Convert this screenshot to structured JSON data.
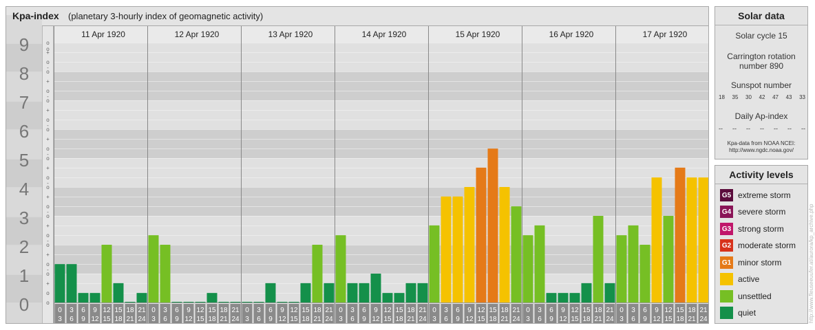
{
  "kp_panel": {
    "title": "Kpa-index",
    "subtitle": "(planetary 3-hourly index of geomagnetic activity)"
  },
  "chart_data": {
    "type": "bar",
    "days": [
      "11 Apr 1920",
      "12 Apr 1920",
      "13 Apr 1920",
      "14 Apr 1920",
      "15 Apr 1920",
      "16 Apr 1920",
      "17 Apr 1920"
    ],
    "interval_starts": [
      "0",
      "3",
      "6",
      "9",
      "12",
      "15",
      "18",
      "21"
    ],
    "interval_ends": [
      "3",
      "6",
      "9",
      "12",
      "15",
      "18",
      "21",
      "24"
    ],
    "y_labels": [
      "0",
      "1",
      "2",
      "3",
      "4",
      "5",
      "6",
      "7",
      "8",
      "9"
    ],
    "y_sub_marks": [
      "+",
      "o",
      "-"
    ],
    "ylim": [
      0,
      9
    ],
    "values": [
      [
        1.33,
        1.33,
        0.33,
        0.33,
        2.0,
        0.67,
        0.0,
        0.33
      ],
      [
        2.33,
        2.0,
        0.0,
        0.0,
        0.0,
        0.33,
        0.0,
        0.0
      ],
      [
        0.0,
        0.0,
        0.67,
        0.0,
        0.0,
        0.67,
        2.0,
        0.67
      ],
      [
        2.33,
        0.67,
        0.67,
        1.0,
        0.33,
        0.33,
        0.67,
        0.67
      ],
      [
        2.67,
        3.67,
        3.67,
        4.0,
        4.67,
        5.33,
        4.0,
        3.33
      ],
      [
        2.33,
        2.67,
        0.33,
        0.33,
        0.33,
        0.67,
        3.0,
        0.67
      ],
      [
        2.33,
        2.67,
        2.0,
        4.33,
        3.0,
        4.67,
        4.33,
        4.33
      ]
    ],
    "colors": {
      "quiet": "#14904a",
      "unsettled": "#76bf24",
      "active": "#f5c200",
      "G1": "#e57a18",
      "G2": "#d7321b",
      "G3": "#c0166a",
      "G4": "#8a1457",
      "G5": "#5b0c3c"
    },
    "grid": true
  },
  "solar": {
    "title": "Solar data",
    "cycle": "Solar cycle 15",
    "carrington_line1": "Carrington rotation",
    "carrington_line2": "number 890",
    "sunspot_title": "Sunspot number",
    "sunspots": [
      "18",
      "35",
      "30",
      "42",
      "47",
      "43",
      "33"
    ],
    "ap_title": "Daily Ap-index",
    "ap_values": [
      "--",
      "--",
      "--",
      "--",
      "--",
      "--",
      "--"
    ],
    "note_line1": "Kpa-data from NOAA NCEI:",
    "note_line2": "http://www.ngdc.noaa.gov/"
  },
  "levels": {
    "title": "Activity levels",
    "items": [
      {
        "code": "G5",
        "label": "extreme storm",
        "color": "#5b0c3c"
      },
      {
        "code": "G4",
        "label": "severe storm",
        "color": "#8a1457"
      },
      {
        "code": "G3",
        "label": "strong storm",
        "color": "#c0166a"
      },
      {
        "code": "G2",
        "label": "moderate storm",
        "color": "#d7321b"
      },
      {
        "code": "G1",
        "label": "minor storm",
        "color": "#e57a18"
      },
      {
        "code": "",
        "label": "active",
        "color": "#f5c200"
      },
      {
        "code": "",
        "label": "unsettled",
        "color": "#76bf24"
      },
      {
        "code": "",
        "label": "quiet",
        "color": "#14904a"
      }
    ]
  },
  "watermark": "http://www.fleuseeuufer.at/aurora/kp_archive.php"
}
